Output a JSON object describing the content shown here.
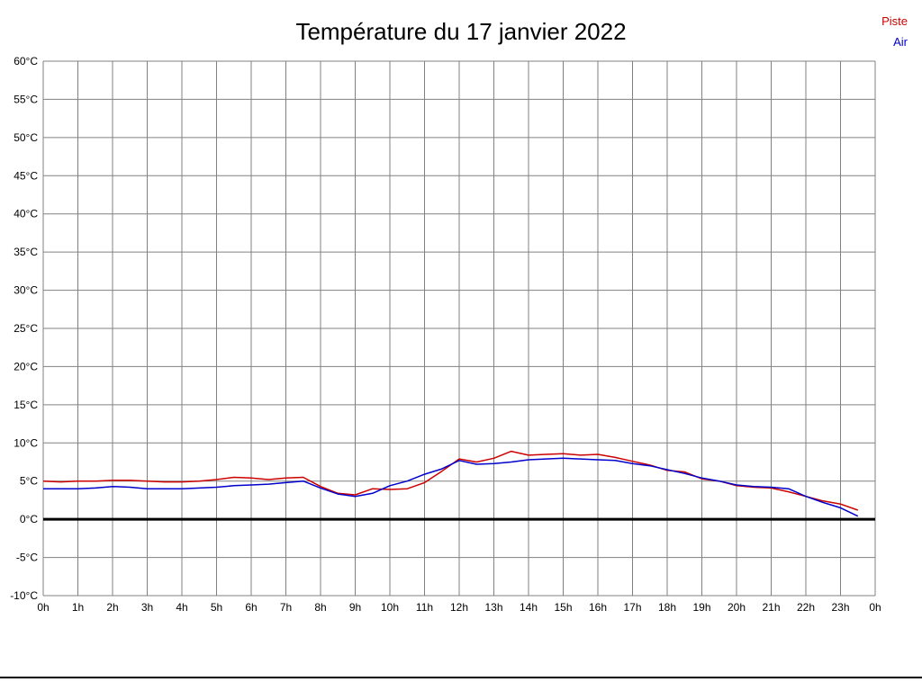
{
  "title": "Température du 17 janvier 2022",
  "legend": [
    {
      "label": "Piste",
      "color": "#cc0000"
    },
    {
      "label": "Air",
      "color": "#0000cc"
    }
  ],
  "chart_data": {
    "type": "line",
    "title": "Température du 17 janvier 2022",
    "xlabel": "",
    "ylabel": "",
    "ylim": [
      -10,
      60
    ],
    "y_tick_step": 5,
    "grid": true,
    "legend_position": "top-right",
    "grid_color": "#808080",
    "zero_line_color": "#000000",
    "x_tick_labels": [
      "0h",
      "1h",
      "2h",
      "3h",
      "4h",
      "5h",
      "6h",
      "7h",
      "8h",
      "9h",
      "10h",
      "11h",
      "12h",
      "13h",
      "14h",
      "15h",
      "16h",
      "17h",
      "18h",
      "19h",
      "20h",
      "21h",
      "22h",
      "23h",
      "0h"
    ],
    "y_tick_labels": [
      "60°C",
      "55°C",
      "50°C",
      "45°C",
      "40°C",
      "35°C",
      "30°C",
      "25°C",
      "20°C",
      "15°C",
      "10°C",
      "5°C",
      "0°C",
      "-5°C",
      "-10°C"
    ],
    "x": [
      0,
      0.5,
      1,
      1.5,
      2,
      2.5,
      3,
      3.5,
      4,
      4.5,
      5,
      5.5,
      6,
      6.5,
      7,
      7.5,
      8,
      8.5,
      9,
      9.5,
      10,
      10.5,
      11,
      11.5,
      12,
      12.5,
      13,
      13.5,
      14,
      14.5,
      15,
      15.5,
      16,
      16.5,
      17,
      17.5,
      18,
      18.5,
      19,
      19.5,
      20,
      20.5,
      21,
      21.5,
      22,
      22.5,
      23,
      23.5
    ],
    "series": [
      {
        "name": "Piste",
        "color": "#cc0000",
        "values": [
          5.0,
          4.9,
          5.0,
          5.0,
          5.1,
          5.1,
          5.0,
          4.9,
          4.9,
          5.0,
          5.2,
          5.5,
          5.4,
          5.2,
          5.4,
          5.5,
          4.3,
          3.4,
          3.2,
          4.0,
          3.9,
          4.0,
          4.8,
          6.3,
          7.9,
          7.5,
          8.0,
          8.9,
          8.4,
          8.5,
          8.6,
          8.4,
          8.5,
          8.1,
          7.6,
          7.1,
          6.4,
          6.2,
          5.3,
          5.0,
          4.4,
          4.2,
          4.1,
          3.6,
          3.0,
          2.4,
          2.0,
          1.2
        ]
      },
      {
        "name": "Air",
        "color": "#0000cc",
        "values": [
          4.0,
          4.0,
          4.0,
          4.1,
          4.3,
          4.2,
          4.0,
          4.0,
          4.0,
          4.1,
          4.2,
          4.4,
          4.5,
          4.6,
          4.8,
          5.0,
          4.1,
          3.3,
          3.0,
          3.4,
          4.4,
          5.0,
          5.9,
          6.6,
          7.7,
          7.2,
          7.3,
          7.5,
          7.8,
          7.9,
          8.0,
          7.9,
          7.8,
          7.7,
          7.3,
          7.0,
          6.5,
          6.0,
          5.4,
          5.0,
          4.5,
          4.3,
          4.2,
          4.0,
          3.0,
          2.2,
          1.5,
          0.4
        ]
      }
    ]
  }
}
